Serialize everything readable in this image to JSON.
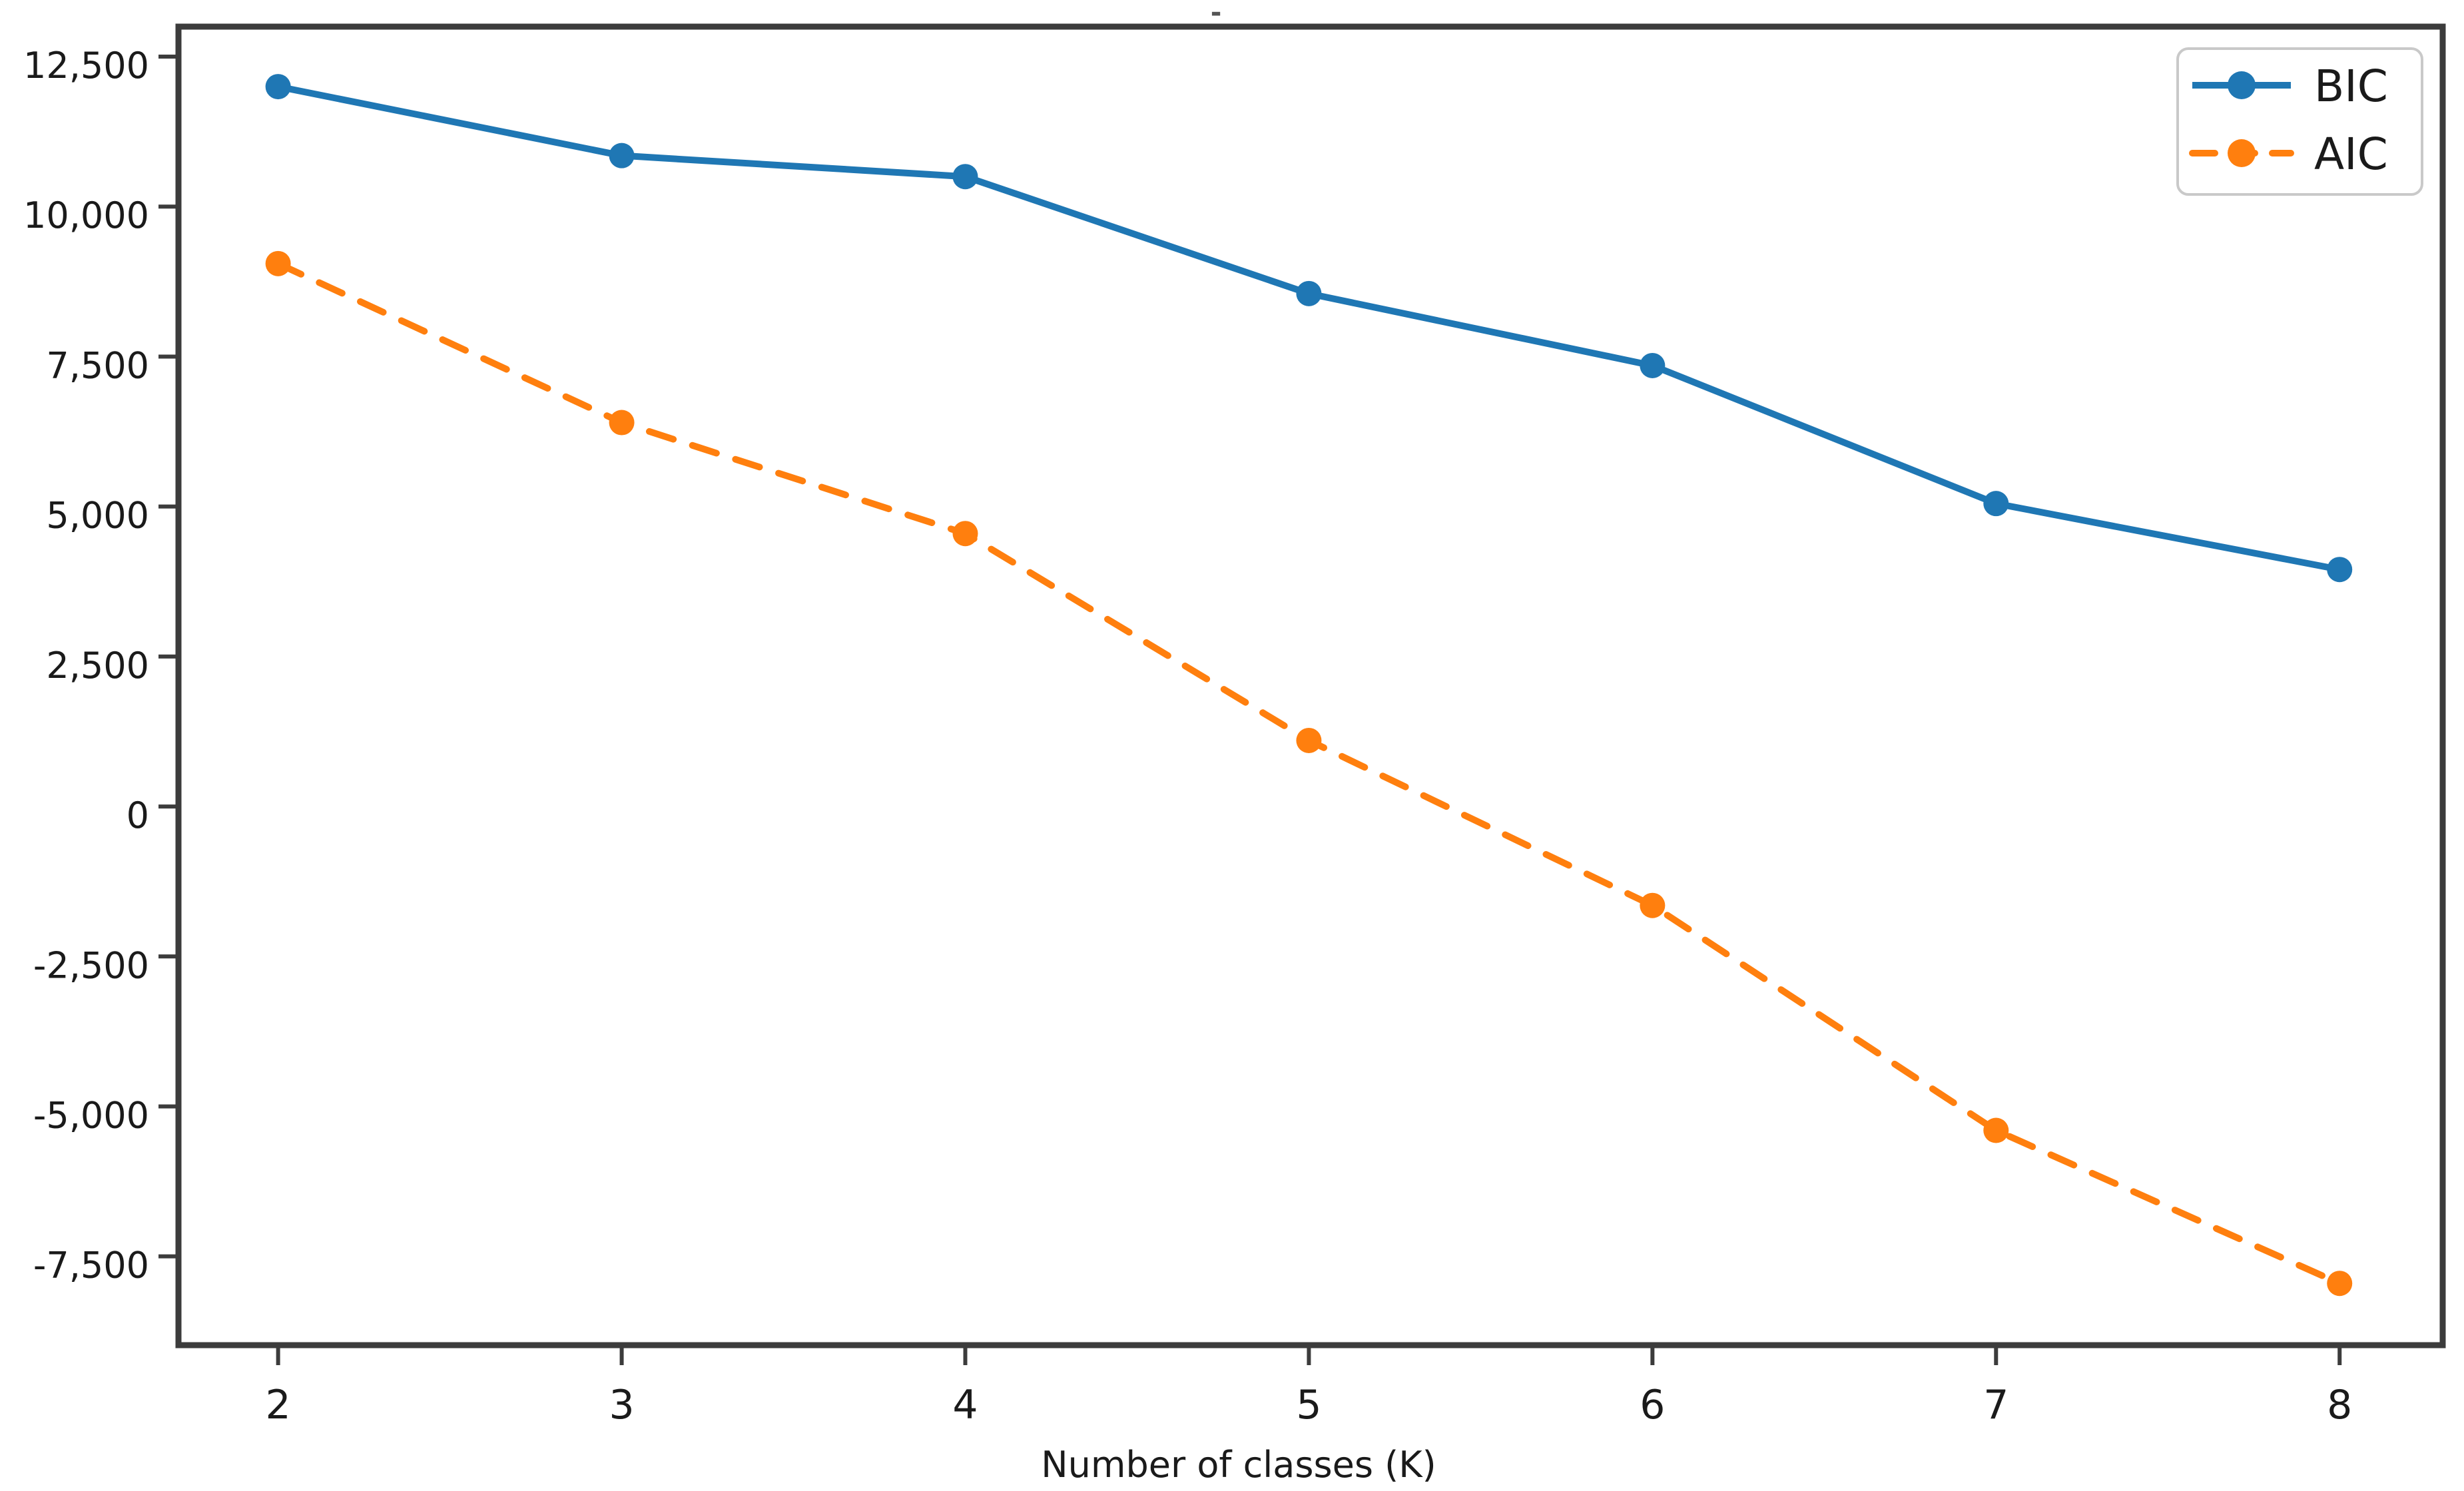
{
  "chart_data": {
    "type": "line",
    "title": "-",
    "xlabel": "Number of classes (K)",
    "ylabel": "",
    "x": [
      2,
      3,
      4,
      5,
      6,
      7,
      8
    ],
    "series": [
      {
        "name": "BIC",
        "color": "#1f77b4",
        "line_style": "solid",
        "marker": "circle",
        "values": [
          12000,
          10850,
          10500,
          8550,
          7350,
          5050,
          3950
        ]
      },
      {
        "name": "AIC",
        "color": "#ff7f0e",
        "line_style": "dashed",
        "marker": "circle",
        "values": [
          9050,
          6400,
          4550,
          1100,
          -1650,
          -5400,
          -7950
        ]
      }
    ],
    "xticks": [
      2,
      3,
      4,
      5,
      6,
      7,
      8
    ],
    "xtick_labels": [
      "2",
      "3",
      "4",
      "5",
      "6",
      "7",
      "8"
    ],
    "yticks": [
      12500,
      10000,
      7500,
      5000,
      2500,
      0,
      -2500,
      -5000,
      -7500
    ],
    "ytick_labels": [
      "12,500",
      "10,000",
      "7,500",
      "5,000",
      "2,500",
      "0",
      "-2,500",
      "-5,000",
      "-7,500"
    ],
    "xlim": [
      1.71,
      8.3
    ],
    "ylim": [
      -8980,
      13000
    ],
    "grid": false,
    "legend": {
      "position": "upper right",
      "entries": [
        "BIC",
        "AIC"
      ]
    },
    "axis_color": "#3c3c3c",
    "text_color": "#1a1a1a",
    "legend_border_color": "#c9c9c9",
    "background": "#ffffff"
  }
}
